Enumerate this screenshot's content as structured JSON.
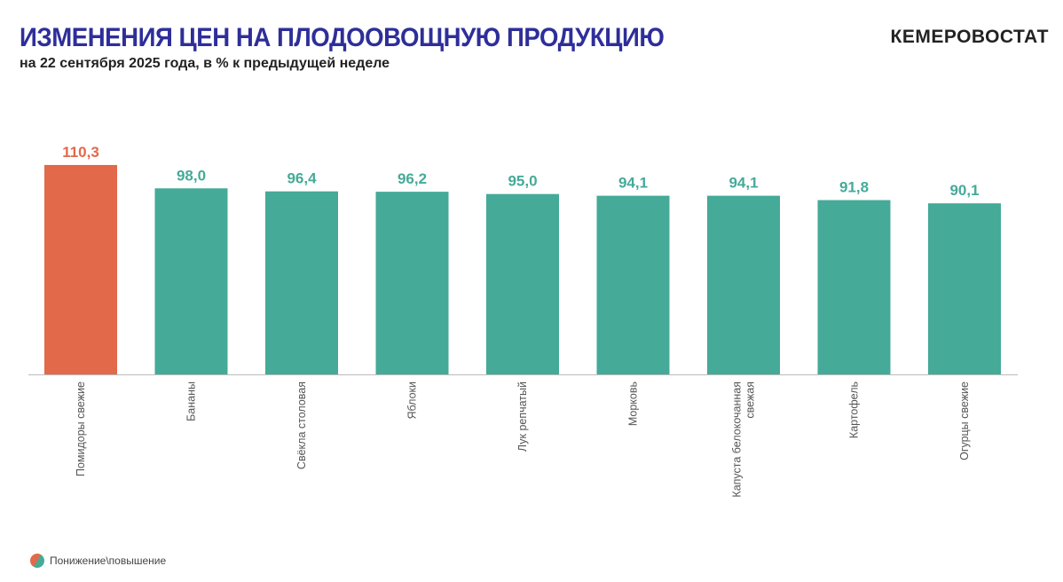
{
  "header": {
    "title": "ИЗМЕНЕНИЯ ЦЕН НА ПЛОДООВОЩНУЮ ПРОДУКЦИЮ",
    "subtitle": "на 22 сентября 2025 года, в % к предыдущей неделе",
    "brand": "КЕМЕРОВОСТАТ"
  },
  "legend": {
    "label": "Понижение\\повышение"
  },
  "colors": {
    "increase": "#E2694A",
    "decrease": "#45AA98",
    "title": "#2E2E9A"
  },
  "chart_data": {
    "type": "bar",
    "categories": [
      "Помидоры свежие",
      "Бананы",
      "Свёкла столовая",
      "Яблоки",
      "Лук репчатый",
      "Морковь",
      "Капуста белокочанная свежая",
      "Картофель",
      "Огурцы свежие"
    ],
    "values": [
      110.3,
      98.0,
      96.4,
      96.2,
      95.0,
      94.1,
      94.1,
      91.8,
      90.1
    ],
    "value_labels": [
      "110,3",
      "98,0",
      "96,4",
      "96,2",
      "95,0",
      "94,1",
      "94,1",
      "91,8",
      "90,1"
    ],
    "ylim": [
      0,
      115
    ],
    "grid": false,
    "legend_position": "bottom-left"
  }
}
